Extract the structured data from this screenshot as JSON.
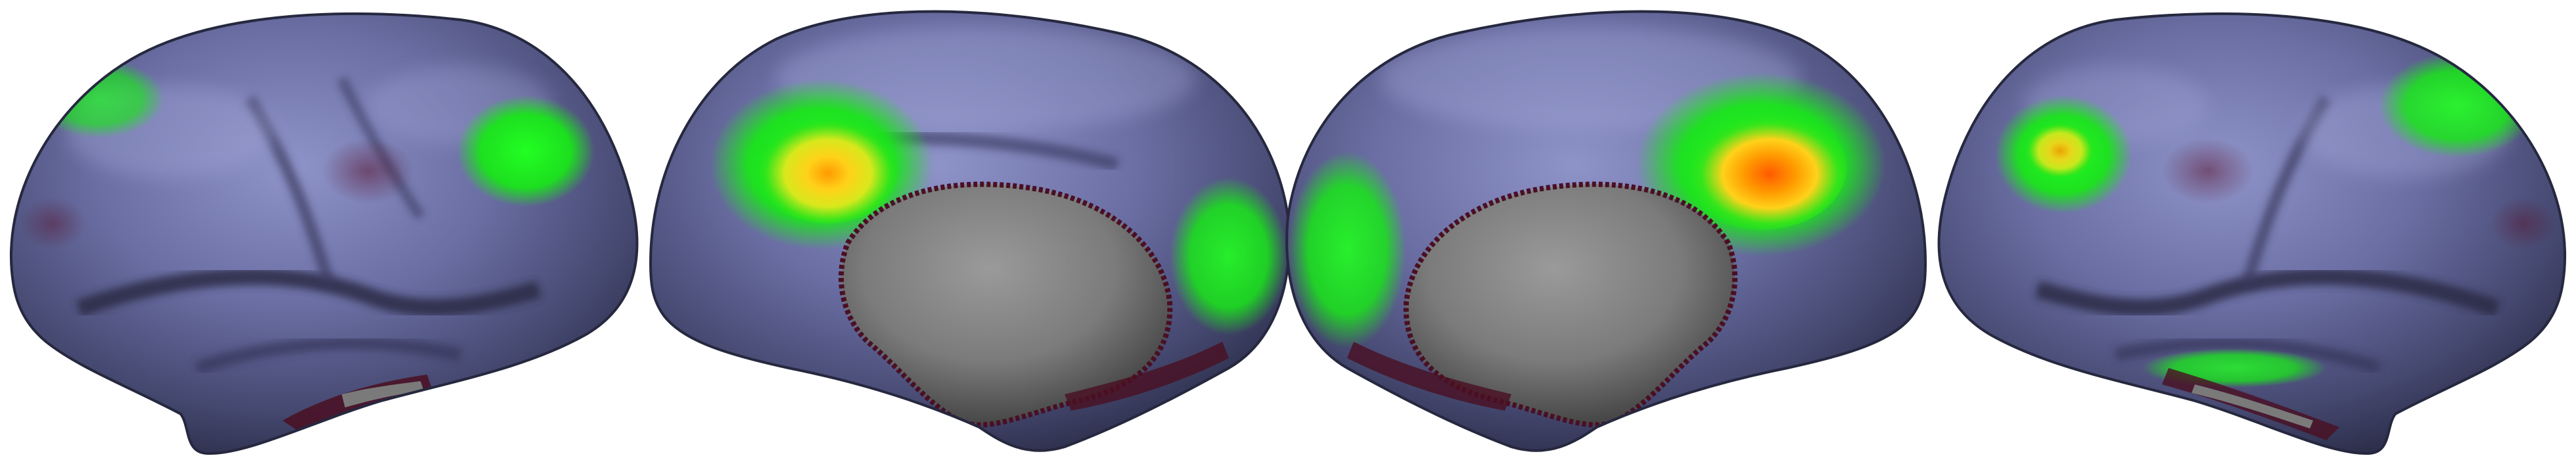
{
  "figure": {
    "panels": [
      {
        "view": "left-lateral"
      },
      {
        "view": "left-medial"
      },
      {
        "view": "right-medial"
      },
      {
        "view": "right-lateral"
      }
    ],
    "colors": {
      "background": "#ffffff",
      "cortex_base": "#5b5f8e",
      "cortex_highlight": "#9ea3d6",
      "cortex_shadow": "#2a2d4a",
      "sulcus_dark": "#3a2a3c",
      "medial_wall": "#7a7a7a",
      "medial_wall_dark": "#4a4a4a",
      "rim_maroon": "#4a0f22",
      "activation_green": "#19e619",
      "activation_yellow": "#e6e61a",
      "activation_orange": "#ff7a00"
    }
  }
}
